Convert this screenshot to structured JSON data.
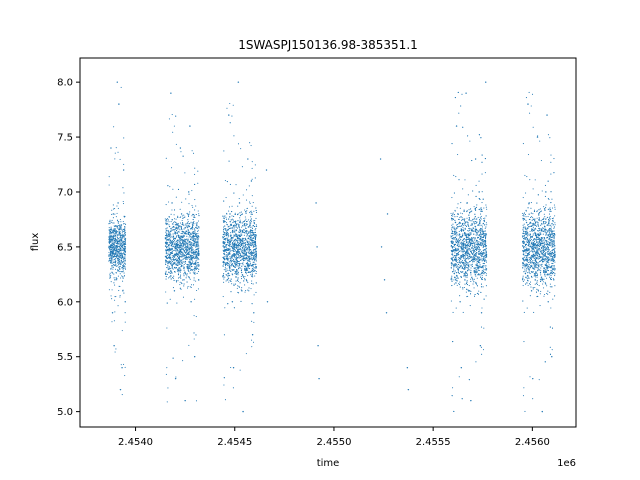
{
  "chart_data": {
    "type": "scatter",
    "title": "1SWASPJ150136.98-385351.1",
    "xlabel": "time",
    "ylabel": "flux",
    "x_offset_label": "1e6",
    "xlim": [
      2453720,
      2456220
    ],
    "ylim": [
      4.86,
      8.22
    ],
    "x_ticks": [
      2454000,
      2454500,
      2455000,
      2455500,
      2456000
    ],
    "x_tick_labels": [
      "2.4540",
      "2.4545",
      "2.4550",
      "2.4555",
      "2.4560"
    ],
    "y_ticks": [
      5.0,
      5.5,
      6.0,
      6.5,
      7.0,
      7.5,
      8.0
    ],
    "y_tick_labels": [
      "5.0",
      "5.5",
      "6.0",
      "6.5",
      "7.0",
      "7.5",
      "8.0"
    ],
    "grid": false,
    "marker_color": "#1f77b4",
    "marker_style": "tiny dots",
    "point_count_note": "dense observing seasons",
    "series": [
      {
        "x": [
          2453872,
          2453880,
          2453888,
          2453896,
          2453904,
          2453912,
          2453920,
          2453928,
          2453936,
          2453944,
          2453876,
          2453892,
          2453908,
          2453924,
          2453940,
          2453884,
          2453900,
          2453916,
          2453932,
          2453948,
          2454160,
          2454172,
          2454184,
          2454196,
          2454208,
          2454220,
          2454232,
          2454244,
          2454256,
          2454268,
          2454280,
          2454292,
          2454304,
          2454178,
          2454202,
          2454226,
          2454250,
          2454274,
          2454298,
          2454318,
          2454452,
          2454464,
          2454476,
          2454488,
          2454500,
          2454512,
          2454524,
          2454536,
          2454548,
          2454560,
          2454572,
          2454584,
          2454596,
          2454470,
          2454494,
          2454518,
          2454542,
          2454566,
          2454590,
          2454608,
          2454660,
          2454665,
          2454910,
          2454915,
          2454920,
          2454925,
          2455235,
          2455240,
          2455255,
          2455265,
          2455270,
          2455370,
          2455375,
          2455600,
          2455612,
          2455624,
          2455636,
          2455648,
          2455660,
          2455672,
          2455684,
          2455696,
          2455708,
          2455720,
          2455732,
          2455744,
          2455756,
          2455618,
          2455642,
          2455666,
          2455690,
          2455714,
          2455738,
          2455762,
          2455765,
          2455960,
          2455972,
          2455984,
          2455996,
          2456008,
          2456020,
          2456032,
          2456044,
          2456056,
          2456068,
          2456080,
          2456092,
          2456104,
          2455978,
          2456002,
          2456026,
          2456050,
          2456074,
          2456098,
          2456108
        ],
        "y": [
          6.6,
          6.4,
          6.8,
          6.2,
          6.5,
          6.9,
          6.3,
          6.7,
          6.1,
          6.5,
          7.4,
          5.6,
          8.0,
          5.2,
          7.2,
          5.9,
          6.6,
          7.8,
          5.4,
          6.0,
          6.6,
          6.3,
          6.9,
          6.1,
          6.7,
          6.4,
          6.8,
          6.2,
          6.5,
          7.0,
          6.0,
          6.6,
          6.3,
          7.9,
          5.3,
          7.4,
          5.1,
          7.6,
          5.5,
          6.2,
          6.5,
          6.2,
          6.8,
          6.0,
          6.6,
          6.4,
          6.9,
          6.1,
          6.7,
          6.3,
          6.5,
          7.1,
          5.9,
          7.7,
          5.4,
          8.0,
          5.0,
          7.3,
          5.7,
          6.4,
          7.2,
          6.0,
          6.9,
          6.5,
          5.6,
          5.3,
          7.3,
          6.5,
          6.2,
          5.9,
          6.8,
          5.4,
          5.2,
          6.5,
          6.2,
          6.8,
          6.0,
          6.6,
          6.3,
          6.9,
          6.1,
          6.7,
          6.4,
          6.5,
          7.0,
          5.9,
          6.6,
          7.6,
          5.4,
          7.9,
          5.1,
          7.3,
          5.6,
          6.2,
          8.0,
          6.6,
          6.3,
          6.9,
          6.1,
          6.7,
          6.4,
          6.8,
          6.2,
          6.5,
          7.0,
          6.0,
          6.6,
          6.3,
          7.8,
          5.3,
          7.5,
          5.0,
          7.7,
          5.5,
          6.2
        ]
      }
    ]
  }
}
